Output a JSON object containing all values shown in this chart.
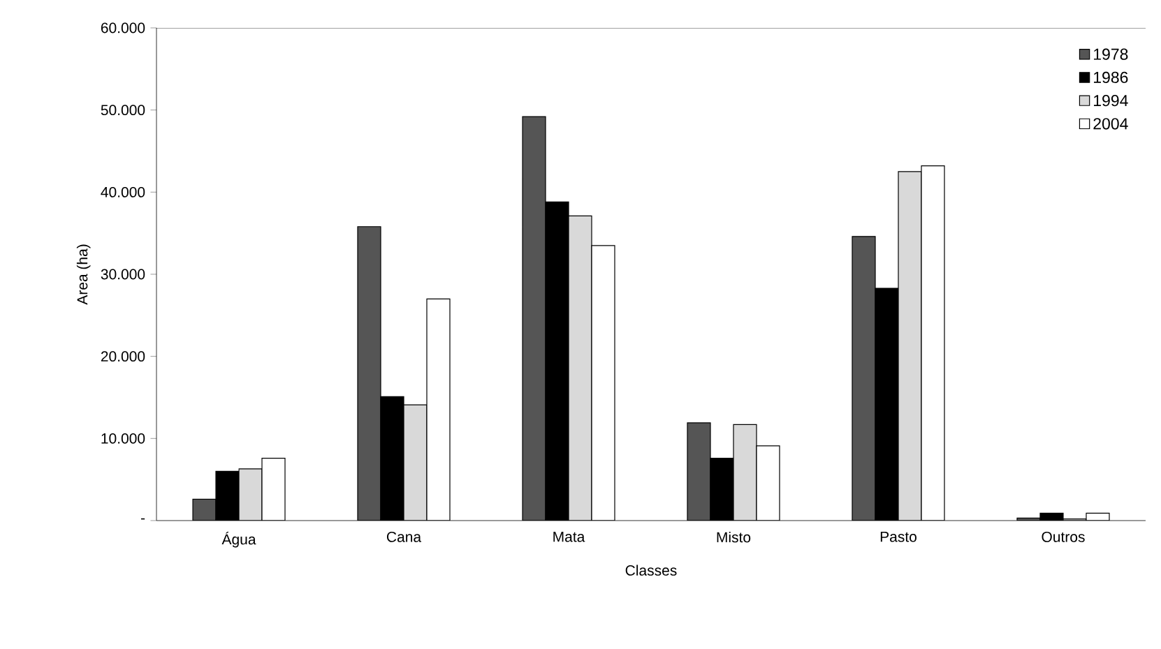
{
  "chart_data": {
    "type": "bar",
    "xlabel": "Classes",
    "ylabel": "Area (ha)",
    "categories": [
      "Água",
      "Cana",
      "Mata",
      "Misto",
      "Pasto",
      "Outros"
    ],
    "series": [
      {
        "name": "1978",
        "color": "#555555",
        "values": [
          2600,
          35800,
          49200,
          11900,
          34600,
          300
        ]
      },
      {
        "name": "1986",
        "color": "#000000",
        "values": [
          6000,
          15100,
          38800,
          7600,
          28300,
          900
        ]
      },
      {
        "name": "1994",
        "color": "#d9d9d9",
        "values": [
          6300,
          14100,
          37100,
          11700,
          42500,
          200
        ]
      },
      {
        "name": "2004",
        "color": "#ffffff",
        "values": [
          7600,
          27000,
          33500,
          9100,
          43200,
          900
        ]
      }
    ],
    "ylim": [
      0,
      60000
    ],
    "yticks": [
      {
        "value": 0,
        "label": "-"
      },
      {
        "value": 10000,
        "label": "10.000"
      },
      {
        "value": 20000,
        "label": "20.000"
      },
      {
        "value": 30000,
        "label": "30.000"
      },
      {
        "value": 40000,
        "label": "40.000"
      },
      {
        "value": 50000,
        "label": "50.000"
      },
      {
        "value": 60000,
        "label": "60.000"
      }
    ],
    "grid": false,
    "legend": "top right"
  }
}
